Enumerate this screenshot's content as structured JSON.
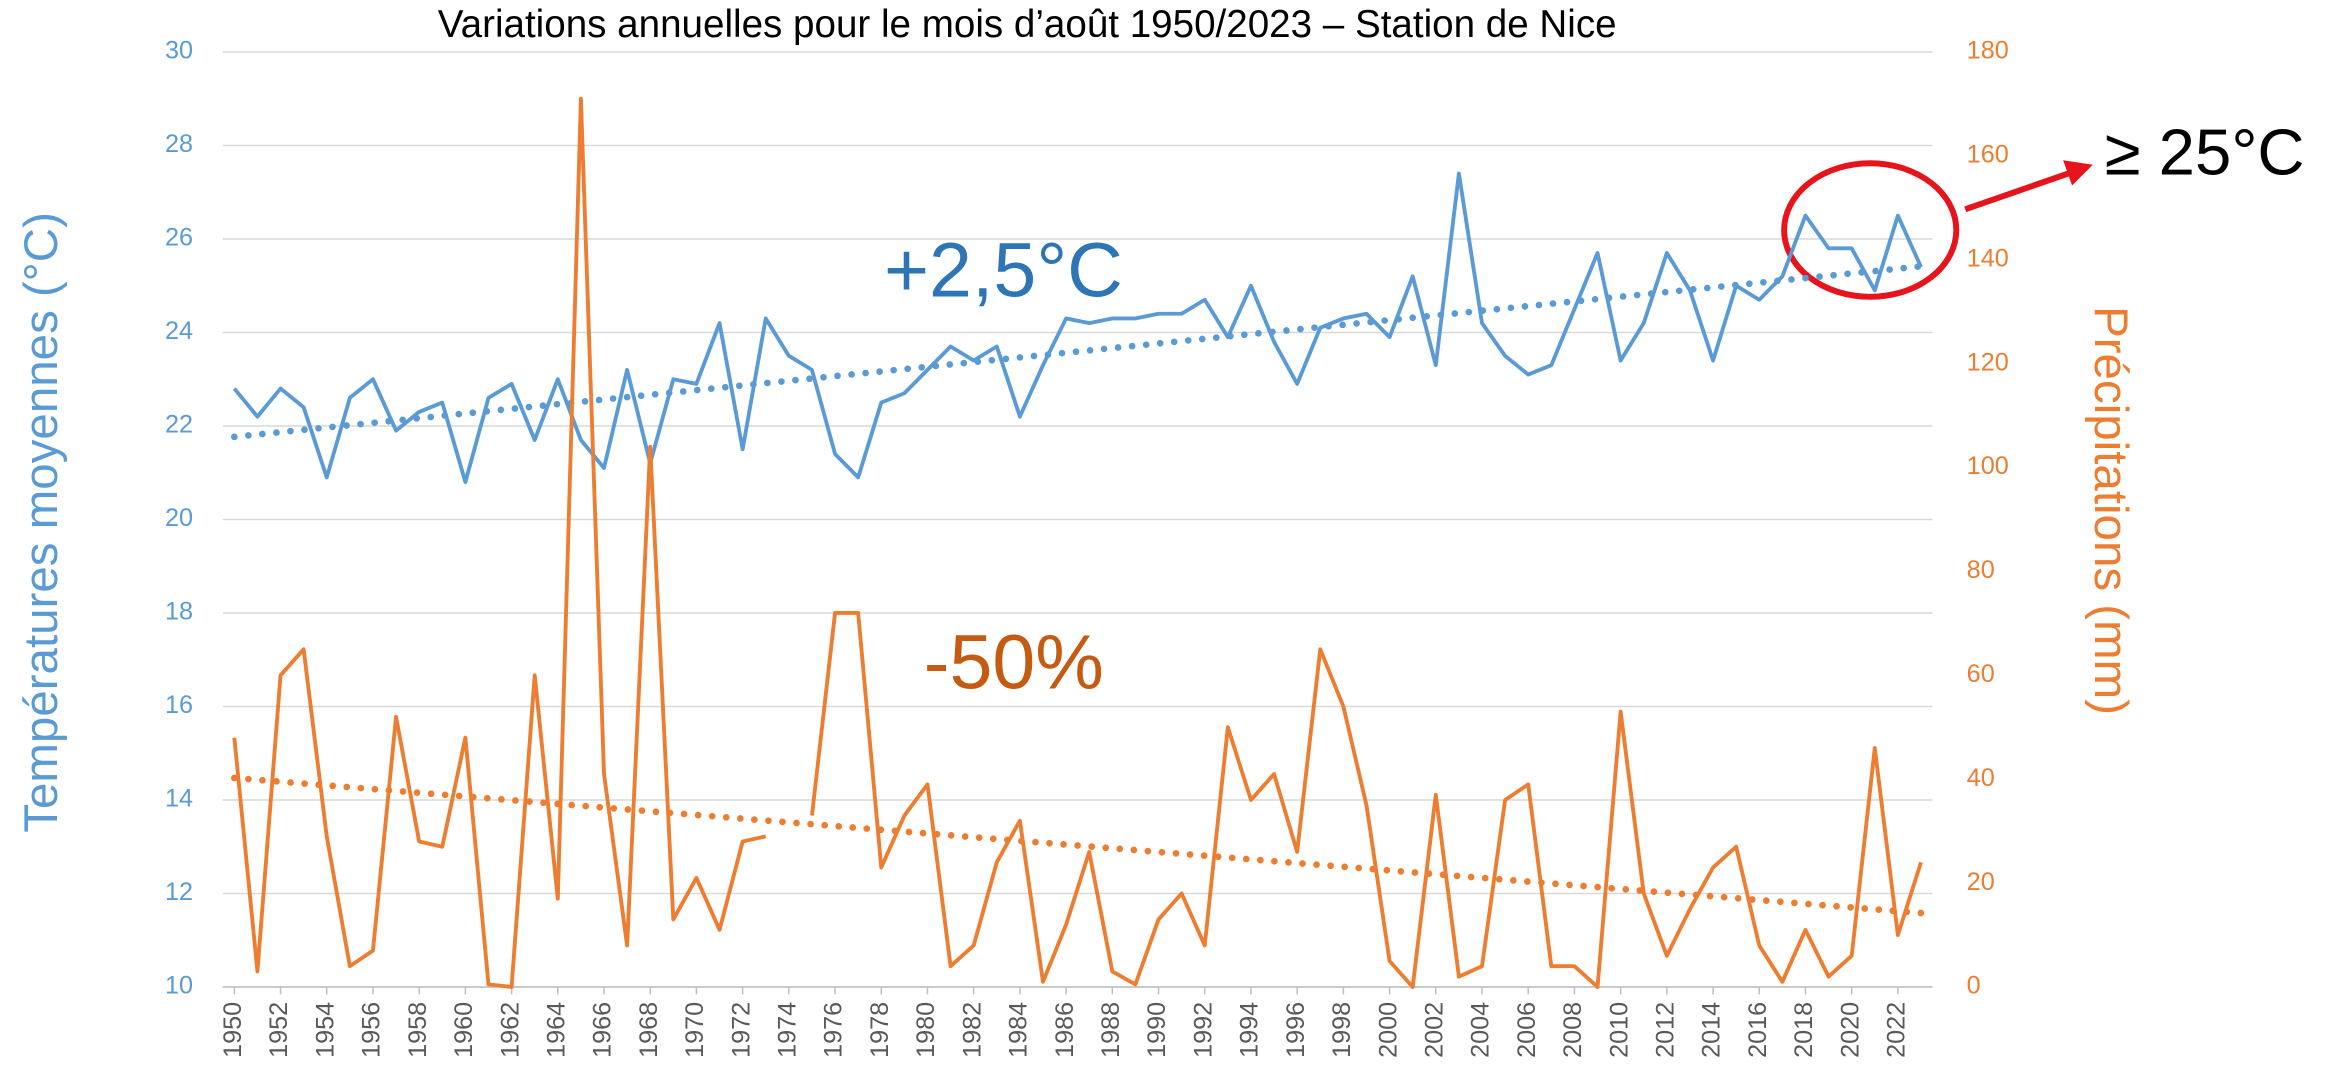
{
  "chart_data": {
    "type": "line",
    "title": "Variations annuelles pour le mois d’août 1950/2023 – Station de Nice",
    "y_label": "Températures moyennes (°C)",
    "y2_label": "Précipitations (mm)",
    "annotations": [
      "+2,5°C",
      "-50%",
      "≥ 25°C"
    ],
    "x": [
      1950,
      1951,
      1952,
      1953,
      1954,
      1955,
      1956,
      1957,
      1958,
      1959,
      1960,
      1961,
      1962,
      1963,
      1964,
      1965,
      1966,
      1967,
      1968,
      1969,
      1970,
      1971,
      1972,
      1973,
      1974,
      1975,
      1976,
      1977,
      1978,
      1979,
      1980,
      1981,
      1982,
      1983,
      1984,
      1985,
      1986,
      1987,
      1988,
      1989,
      1990,
      1991,
      1992,
      1993,
      1994,
      1995,
      1996,
      1997,
      1998,
      1999,
      2000,
      2001,
      2002,
      2003,
      2004,
      2005,
      2006,
      2007,
      2008,
      2009,
      2010,
      2011,
      2012,
      2013,
      2014,
      2015,
      2016,
      2017,
      2018,
      2019,
      2020,
      2021,
      2022,
      2023
    ],
    "xlim": [
      1949.5,
      2023.5
    ],
    "xticks": [
      1950,
      1952,
      1954,
      1956,
      1958,
      1960,
      1962,
      1964,
      1966,
      1968,
      1970,
      1972,
      1974,
      1976,
      1978,
      1980,
      1982,
      1984,
      1986,
      1988,
      1990,
      1992,
      1994,
      1996,
      1998,
      2000,
      2002,
      2004,
      2006,
      2008,
      2010,
      2012,
      2014,
      2016,
      2018,
      2020,
      2022
    ],
    "ylim": [
      10,
      30
    ],
    "yticks": [
      10,
      12,
      14,
      16,
      18,
      20,
      22,
      24,
      26,
      28,
      30
    ],
    "y2lim": [
      0,
      180
    ],
    "y2ticks": [
      0,
      20,
      40,
      60,
      80,
      100,
      120,
      140,
      160,
      180
    ],
    "grid": true,
    "trendline": true,
    "series": [
      {
        "color": "#5b9bd5",
        "values": [
          22.8,
          22.2,
          22.8,
          22.4,
          20.9,
          22.6,
          23.0,
          21.9,
          22.3,
          22.5,
          20.8,
          22.6,
          22.9,
          21.7,
          23.0,
          21.7,
          21.1,
          23.2,
          21.2,
          23.0,
          22.9,
          24.2,
          21.5,
          24.3,
          23.5,
          23.2,
          21.4,
          20.9,
          22.5,
          22.7,
          23.2,
          23.7,
          23.4,
          23.7,
          22.2,
          23.3,
          24.3,
          24.2,
          24.3,
          24.3,
          24.4,
          24.4,
          24.7,
          23.9,
          25.0,
          23.8,
          22.9,
          24.1,
          24.3,
          24.4,
          23.9,
          25.2,
          23.3,
          27.4,
          24.2,
          23.5,
          23.1,
          23.3,
          24.5,
          25.7,
          23.4,
          24.2,
          25.7,
          24.9,
          23.4,
          25.0,
          24.7,
          25.2,
          26.5,
          25.8,
          25.8,
          24.9,
          26.5,
          25.4
        ]
      },
      {
        "color": "#ed7d31",
        "axis": "y2",
        "values": [
          48,
          3,
          60,
          65,
          29,
          4,
          7,
          52,
          28,
          27,
          48,
          0.5,
          0,
          60,
          17,
          171,
          41,
          8,
          104,
          13,
          21,
          11,
          28,
          29,
          null,
          33,
          72,
          72,
          23,
          33,
          39,
          4,
          8,
          24,
          32,
          1,
          12,
          26,
          3,
          0.5,
          13,
          18,
          8,
          50,
          36,
          41,
          26,
          65,
          54,
          35,
          5,
          0,
          37,
          2,
          4,
          36,
          39,
          4,
          4,
          0,
          53,
          18,
          6,
          15,
          23,
          27,
          8,
          1,
          11,
          2,
          6,
          46,
          10,
          24
        ]
      }
    ]
  }
}
